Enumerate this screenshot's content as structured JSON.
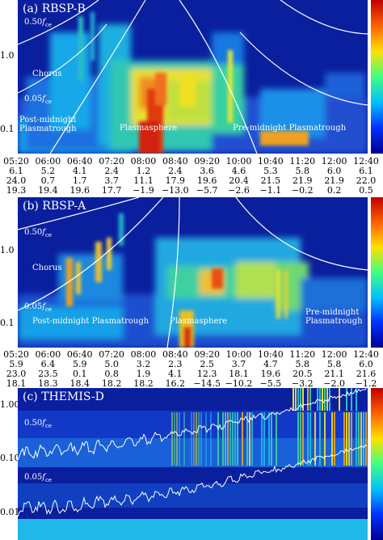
{
  "panels": [
    {
      "id": "a",
      "title": "(a) RBSP-B",
      "yticks": [
        "1.0",
        "0.1"
      ],
      "fce_upper": "0.50",
      "fce_lower": "0.05",
      "fce_symbol": "f",
      "fce_sub": "ce",
      "labels": {
        "chorus": "Chorus",
        "post": [
          "Post-midnight",
          "Plasmatrough"
        ],
        "sphere": "Plasmasphere",
        "pre": "Pre-midnight Plasmatrough"
      },
      "times": [
        "05:20",
        "06:00",
        "06:40",
        "07:20",
        "08:00",
        "08:40",
        "09:20",
        "10:00",
        "10:40",
        "11:20",
        "12:00",
        "12:40"
      ],
      "row1": [
        "6.1",
        "5.2",
        "4.1",
        "2.4",
        "1.2",
        "2.4",
        "3.6",
        "4.6",
        "5.3",
        "5.8",
        "6.0",
        "6.1"
      ],
      "row2": [
        "24.0",
        "0.7",
        "1.7",
        "3.7",
        "11.1",
        "17.9",
        "19.6",
        "20.4",
        "21.5",
        "21.9",
        "21.9",
        "22.0"
      ],
      "row3": [
        "19.3",
        "19.4",
        "19.6",
        "17.7",
        "−1.9",
        "−13.0",
        "−5.7",
        "−2.6",
        "−1.1",
        "−0.2",
        "0.2",
        "0.5"
      ]
    },
    {
      "id": "b",
      "title": "(b) RBSP-A",
      "yticks": [
        "1.0",
        "0.1"
      ],
      "fce_upper": "0.50",
      "fce_lower": "0.05",
      "fce_symbol": "f",
      "fce_sub": "ce",
      "labels": {
        "chorus": "Chorus",
        "post": [
          "Post-midnight Plasmatrough"
        ],
        "sphere": "Plasmasphere",
        "pre": [
          "Pre-midnight",
          "Plasmatrough"
        ]
      },
      "times": [
        "05:20",
        "06:00",
        "06:40",
        "07:20",
        "08:00",
        "08:40",
        "09:20",
        "10:00",
        "10:40",
        "11:20",
        "12:00",
        "12:40"
      ],
      "row1": [
        "5.9",
        "6.4",
        "5.9",
        "5.0",
        "3.2",
        "2.3",
        "2.5",
        "3.7",
        "4.7",
        "5.8",
        "5.8",
        "6.0"
      ],
      "row2": [
        "23.0",
        "23.5",
        "0.1",
        "0.8",
        "1.9",
        "4.1",
        "12.3",
        "18.1",
        "19.6",
        "20.5",
        "21.1",
        "21.6"
      ],
      "row3": [
        "18.1",
        "18.3",
        "18.4",
        "18.2",
        "18.2",
        "16.2",
        "−14.5",
        "−10.2",
        "−5.5",
        "−3.2",
        "−2.0",
        "−1.2"
      ]
    },
    {
      "id": "c",
      "title": "(c) THEMIS-D",
      "yticks": [
        "1.00",
        "0.10",
        "0.01"
      ],
      "fce_upper": "0.50",
      "fce_lower": "0.05",
      "fce_symbol": "f",
      "fce_sub": "ce"
    }
  ],
  "chart_data": [
    {
      "type": "heatmap",
      "title": "(a) RBSP-B",
      "x": [
        "05:20",
        "06:00",
        "06:40",
        "07:20",
        "08:00",
        "08:40",
        "09:20",
        "10:00",
        "10:40",
        "11:20",
        "12:00",
        "12:40"
      ],
      "yticks": [
        1.0,
        0.1
      ],
      "yscale": "log",
      "annotations": [
        "Chorus",
        "Post-midnight Plasmatrough",
        "Plasmasphere",
        "Pre-midnight Plasmatrough",
        "0.50 fce",
        "0.05 fce"
      ],
      "colors": {
        "background": "#0a1f9e",
        "high": "#d21a10"
      }
    },
    {
      "type": "heatmap",
      "title": "(b) RBSP-A",
      "x": [
        "05:20",
        "06:00",
        "06:40",
        "07:20",
        "08:00",
        "08:40",
        "09:20",
        "10:00",
        "10:40",
        "11:20",
        "12:00",
        "12:40"
      ],
      "yticks": [
        1.0,
        0.1
      ],
      "yscale": "log",
      "annotations": [
        "Chorus",
        "Post-midnight Plasmatrough",
        "Plasmasphere",
        "Pre-midnight Plasmatrough",
        "0.50 fce",
        "0.05 fce"
      ],
      "colors": {
        "background": "#0a1f9e",
        "high": "#d21a10"
      }
    },
    {
      "type": "heatmap",
      "title": "(c) THEMIS-D",
      "yticks": [
        1.0,
        0.1,
        0.01
      ],
      "yscale": "log",
      "annotations": [
        "0.50 fce",
        "0.05 fce"
      ],
      "colors": {
        "background": "#0a1f9e",
        "high": "#f0e020"
      }
    }
  ]
}
